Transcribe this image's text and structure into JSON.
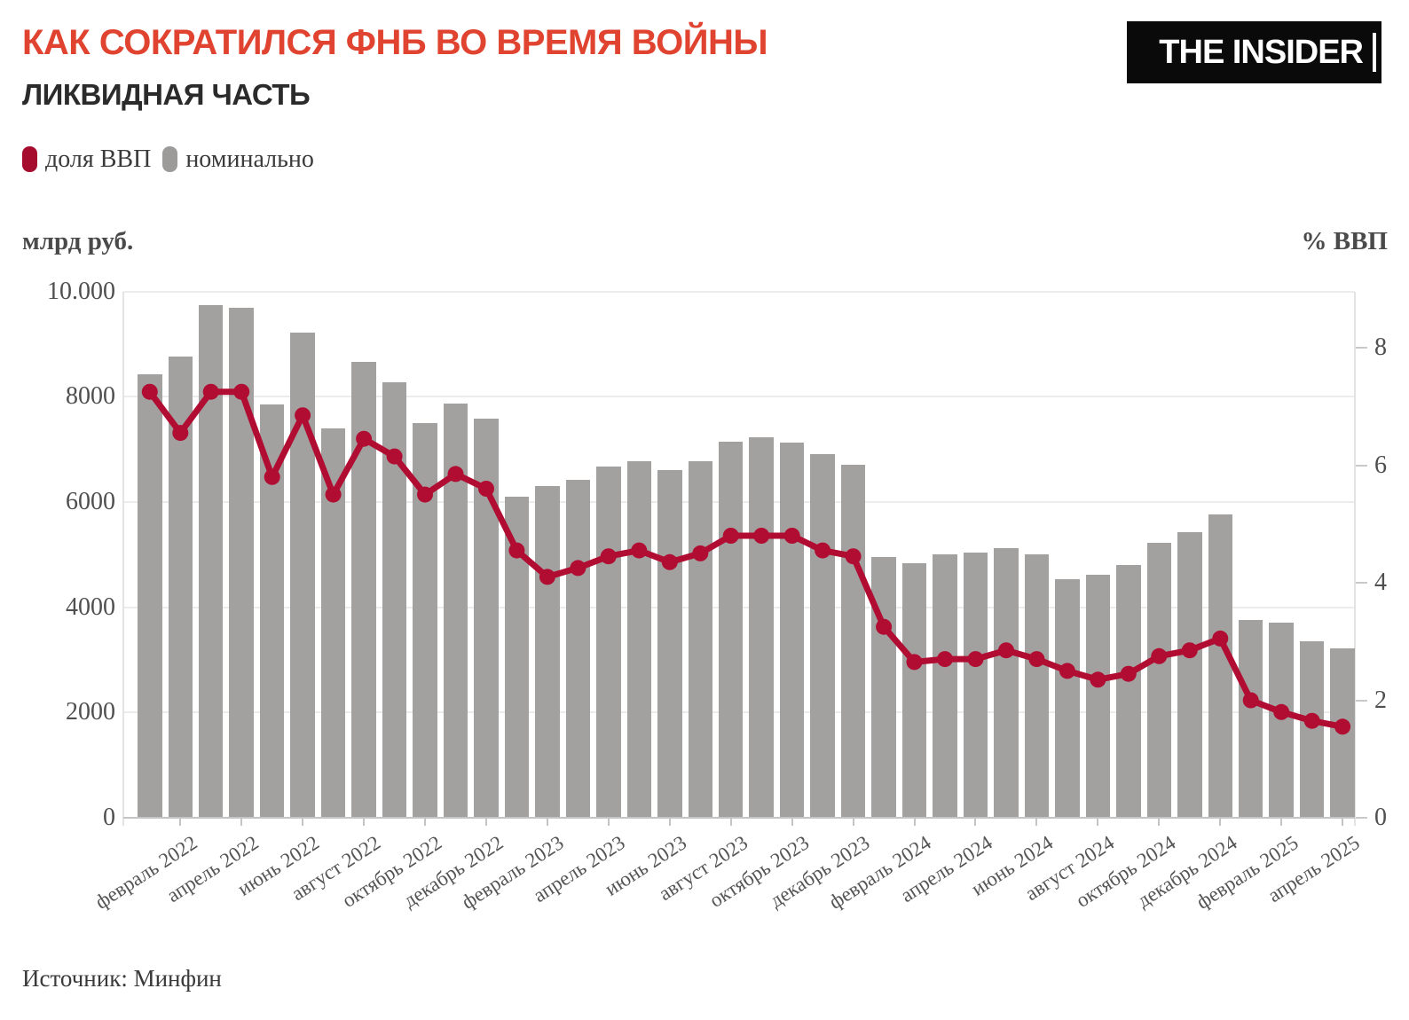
{
  "header": {
    "title": "КАК СОКРАТИЛСЯ ФНБ ВО ВРЕМЯ ВОЙНЫ",
    "subtitle": "ЛИКВИДНАЯ ЧАСТЬ",
    "logo": "THE INSIDER"
  },
  "legend": {
    "items": [
      {
        "label": "доля ВВП",
        "color": "#a60c2e"
      },
      {
        "label": "номинально",
        "color": "#9c9b9a"
      }
    ]
  },
  "axes": {
    "left_title": "млрд руб.",
    "right_title": "% ВВП",
    "left_ticks": [
      {
        "label": "10.000",
        "value": 10000
      },
      {
        "label": "8000",
        "value": 8000
      },
      {
        "label": "6000",
        "value": 6000
      },
      {
        "label": "4000",
        "value": 4000
      },
      {
        "label": "2000",
        "value": 2000
      },
      {
        "label": "0",
        "value": 0
      }
    ],
    "right_ticks": [
      {
        "label": "8",
        "value": 8
      },
      {
        "label": "6",
        "value": 6
      },
      {
        "label": "4",
        "value": 4
      },
      {
        "label": "2",
        "value": 2
      },
      {
        "label": "0",
        "value": 0
      }
    ]
  },
  "source": "Источник: Минфин",
  "colors": {
    "title": "#e0432f",
    "bar": "#a2a1a0",
    "line": "#b10c31",
    "grid": "#ececec"
  },
  "chart_data": {
    "type": "bar",
    "title": "КАК СОКРАТИЛСЯ ФНБ ВО ВРЕМЯ ВОЙНЫ — ЛИКВИДНАЯ ЧАСТЬ",
    "categories": [
      "январь 2022",
      "февраль 2022",
      "март 2022",
      "апрель 2022",
      "май 2022",
      "июнь 2022",
      "июль 2022",
      "август 2022",
      "сентябрь 2022",
      "октябрь 2022",
      "ноябрь 2022",
      "декабрь 2022",
      "январь 2023",
      "февраль 2023",
      "март 2023",
      "апрель 2023",
      "май 2023",
      "июнь 2023",
      "июль 2023",
      "август 2023",
      "сентябрь 2023",
      "октябрь 2023",
      "ноябрь 2023",
      "декабрь 2023",
      "январь 2024",
      "февраль 2024",
      "март 2024",
      "апрель 2024",
      "май 2024",
      "июнь 2024",
      "июль 2024",
      "август 2024",
      "сентябрь 2024",
      "октябрь 2024",
      "ноябрь 2024",
      "декабрь 2024",
      "январь 2025",
      "февраль 2025",
      "март 2025",
      "апрель 2025"
    ],
    "x_labels_every_second_month_starting": "февраль 2022",
    "series": [
      {
        "name": "номинально",
        "type": "bar",
        "axis": "left",
        "unit": "млрд руб.",
        "color": "#a2a1a0",
        "values": [
          8430,
          8770,
          9740,
          9690,
          7860,
          9210,
          7390,
          8660,
          8270,
          7500,
          7870,
          7580,
          6100,
          6310,
          6420,
          6670,
          6780,
          6600,
          6780,
          7150,
          7230,
          7120,
          6910,
          6700,
          4950,
          4840,
          5000,
          5040,
          5130,
          5000,
          4540,
          4620,
          4800,
          5220,
          5420,
          5770,
          3760,
          3710,
          3350,
          3220
        ]
      },
      {
        "name": "доля ВВП",
        "type": "line",
        "axis": "right",
        "unit": "% ВВП",
        "color": "#b10c31",
        "values": [
          7.25,
          6.55,
          7.25,
          7.25,
          5.8,
          6.85,
          5.5,
          6.45,
          6.15,
          5.5,
          5.85,
          5.6,
          4.55,
          4.1,
          4.25,
          4.45,
          4.55,
          4.35,
          4.5,
          4.8,
          4.8,
          4.8,
          4.55,
          4.45,
          3.25,
          2.65,
          2.7,
          2.7,
          2.85,
          2.7,
          2.5,
          2.35,
          2.45,
          2.75,
          2.85,
          3.05,
          2.0,
          1.8,
          1.65,
          1.55
        ]
      }
    ],
    "left_axis": {
      "label": "млрд руб.",
      "min": 0,
      "max": 10000,
      "ticks": [
        0,
        2000,
        4000,
        6000,
        8000,
        10000
      ]
    },
    "right_axis": {
      "label": "% ВВП",
      "min": 0,
      "max": 8.96,
      "ticks": [
        0,
        2,
        4,
        6,
        8
      ]
    },
    "grid": "horizontal",
    "legend_position": "top-left"
  }
}
